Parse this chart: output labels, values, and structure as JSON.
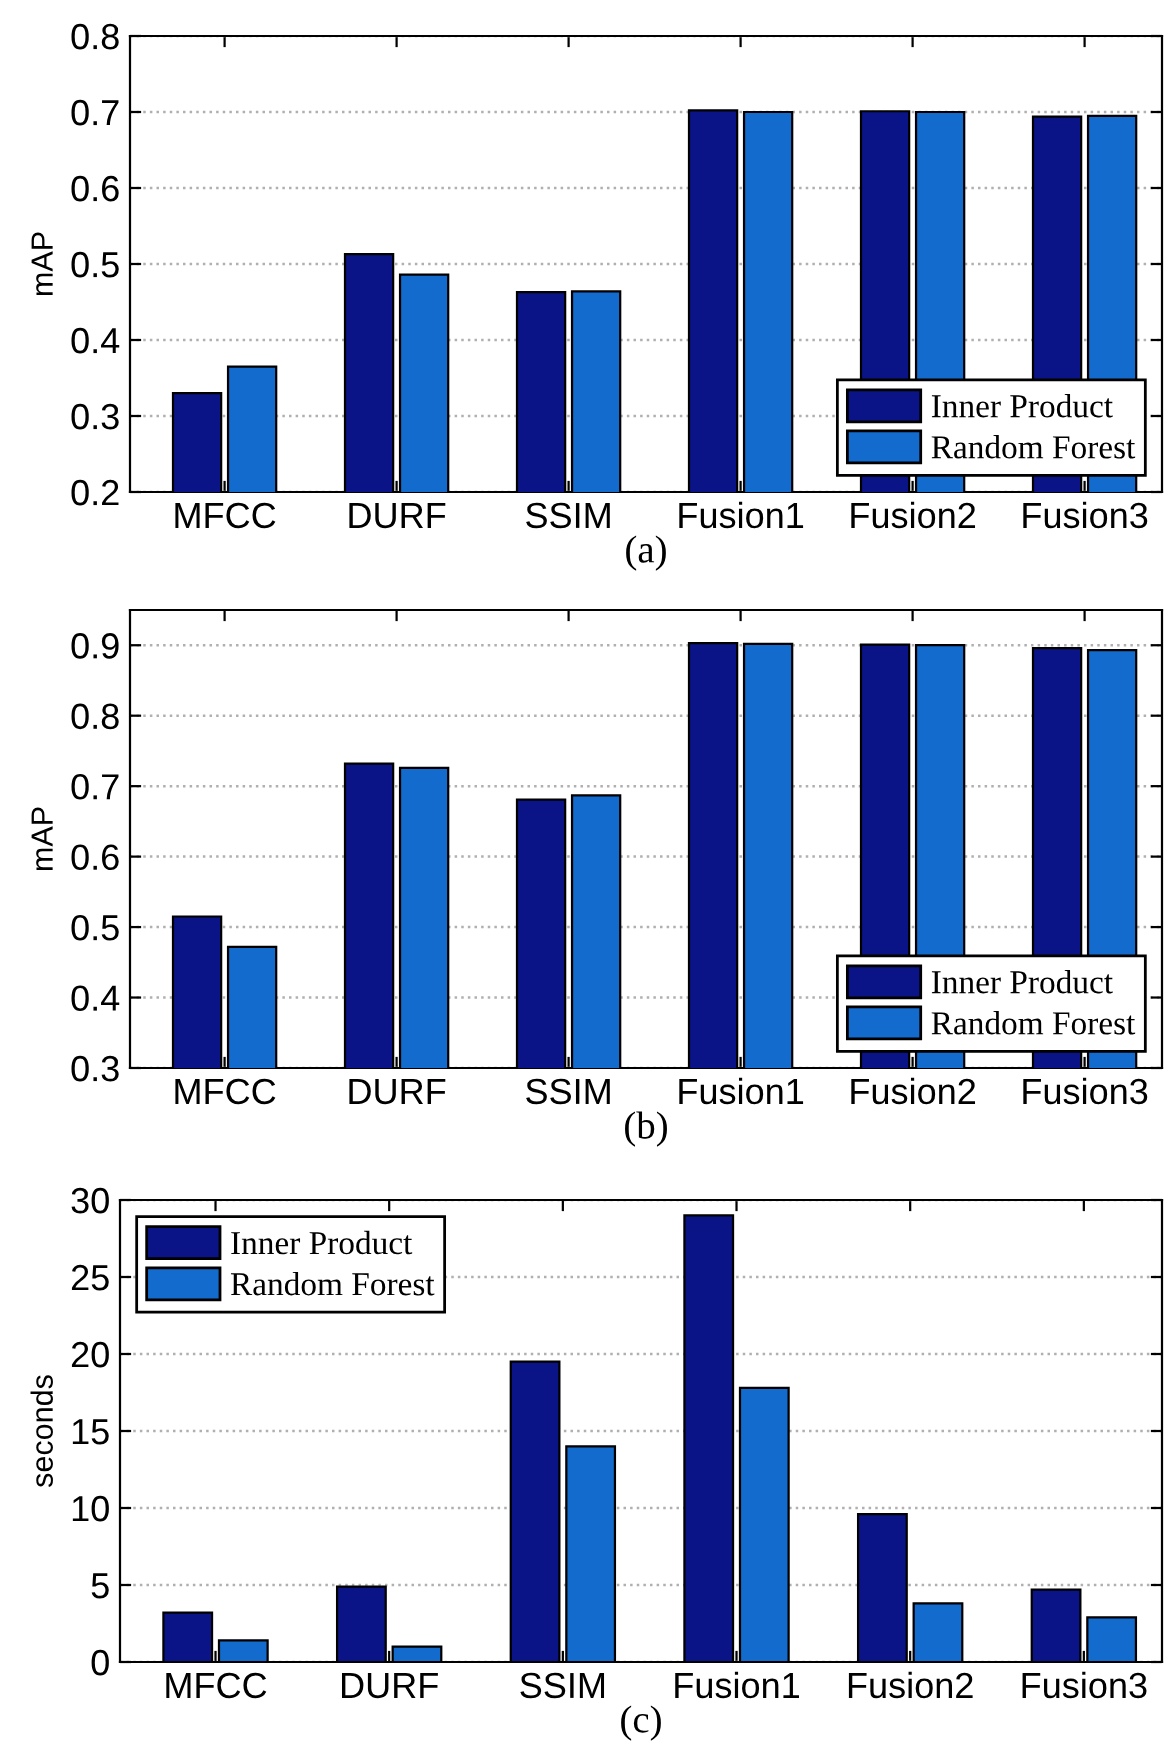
{
  "chart_data": [
    {
      "type": "bar",
      "xlabel": "(a)",
      "ylabel": "mAP",
      "categories": [
        "MFCC",
        "DURF",
        "SSIM",
        "Fusion1",
        "Fusion2",
        "Fusion3"
      ],
      "ylim": [
        0.2,
        0.8
      ],
      "yticks": [
        0.2,
        0.3,
        0.4,
        0.5,
        0.6,
        0.7,
        0.8
      ],
      "grid": "y",
      "legend": "bottom right",
      "series": [
        {
          "name": "Inner Product",
          "color": "#0a1486",
          "values": [
            0.33,
            0.513,
            0.463,
            0.702,
            0.701,
            0.694
          ]
        },
        {
          "name": "Random Forest",
          "color": "#136bcd",
          "values": [
            0.365,
            0.486,
            0.464,
            0.7,
            0.7,
            0.695
          ]
        }
      ]
    },
    {
      "type": "bar",
      "xlabel": "(b)",
      "ylabel": "mAP",
      "categories": [
        "MFCC",
        "DURF",
        "SSIM",
        "Fusion1",
        "Fusion2",
        "Fusion3"
      ],
      "ylim": [
        0.3,
        0.95
      ],
      "yticks": [
        0.3,
        0.4,
        0.5,
        0.6,
        0.7,
        0.8,
        0.9
      ],
      "grid": "y",
      "legend": "bottom right",
      "series": [
        {
          "name": "Inner Product",
          "color": "#0a1486",
          "values": [
            0.515,
            0.732,
            0.681,
            0.903,
            0.901,
            0.896
          ]
        },
        {
          "name": "Random Forest",
          "color": "#136bcd",
          "values": [
            0.472,
            0.726,
            0.687,
            0.902,
            0.9,
            0.893
          ]
        }
      ]
    },
    {
      "type": "bar",
      "xlabel": "(c)",
      "ylabel": "seconds",
      "categories": [
        "MFCC",
        "DURF",
        "SSIM",
        "Fusion1",
        "Fusion2",
        "Fusion3"
      ],
      "ylim": [
        0,
        30
      ],
      "yticks": [
        0,
        5,
        10,
        15,
        20,
        25,
        30
      ],
      "grid": "y",
      "legend": "top left",
      "series": [
        {
          "name": "Inner Product",
          "color": "#0a1486",
          "values": [
            3.2,
            4.9,
            19.5,
            29.0,
            9.6,
            4.7
          ]
        },
        {
          "name": "Random Forest",
          "color": "#136bcd",
          "values": [
            1.4,
            1.0,
            14.0,
            17.8,
            3.8,
            2.9
          ]
        }
      ]
    }
  ]
}
